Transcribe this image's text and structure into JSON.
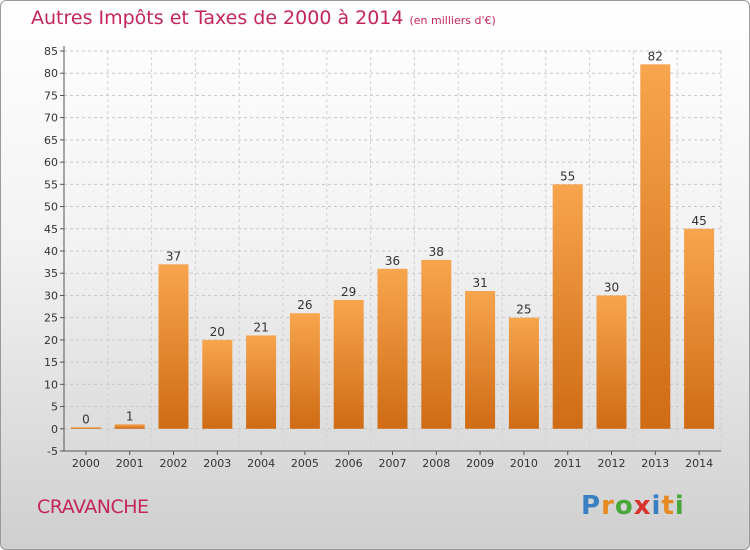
{
  "page": {
    "title": "Autres Impôts et Taxes de 2000 à 2014",
    "unit": "(en milliers d'€)",
    "location": "CRAVANCHE",
    "brand": "Proxiti",
    "brand_colors": [
      "#3a7fc2",
      "#e58a1f",
      "#4aa83a",
      "#d8342c",
      "#3a7fc2",
      "#e58a1f",
      "#4aa83a"
    ]
  },
  "chart_data": {
    "type": "bar",
    "title": "Autres Impôts et Taxes de 2000 à 2014",
    "subtitle": "(en milliers d'€)",
    "categories": [
      "2000",
      "2001",
      "2002",
      "2003",
      "2004",
      "2005",
      "2006",
      "2007",
      "2008",
      "2009",
      "2010",
      "2011",
      "2012",
      "2013",
      "2014"
    ],
    "values": [
      0,
      1,
      37,
      20,
      21,
      26,
      29,
      36,
      38,
      31,
      25,
      55,
      30,
      82,
      45
    ],
    "ylim": [
      -5,
      85
    ],
    "yticks": [
      -5,
      0,
      5,
      10,
      15,
      20,
      25,
      30,
      35,
      40,
      45,
      50,
      55,
      60,
      65,
      70,
      75,
      80,
      85
    ],
    "grid": true,
    "bar_color_top": "#f7a54e",
    "bar_color_bottom": "#cf6b14"
  }
}
